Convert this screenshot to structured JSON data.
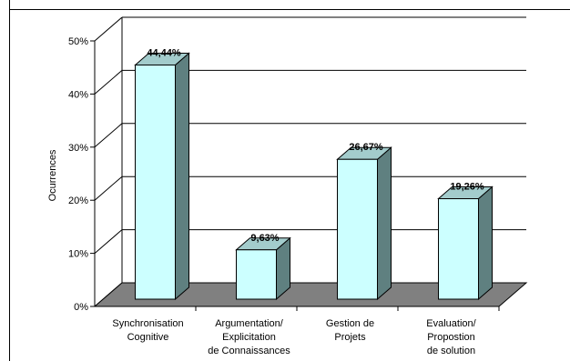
{
  "chart_data": {
    "type": "bar",
    "title": "",
    "xlabel": "",
    "ylabel": "Ocurrences",
    "ylim": [
      0,
      50
    ],
    "y_ticks": [
      "0%",
      "10%",
      "20%",
      "30%",
      "40%",
      "50%"
    ],
    "grid": true,
    "categories": [
      [
        "Synchronisation",
        "Cognitive"
      ],
      [
        "Argumentation/",
        "Explicitation",
        "de Connaissances"
      ],
      [
        "Gestion de",
        "Projets"
      ],
      [
        "Evaluation/",
        "Propostion",
        "de solution"
      ]
    ],
    "values": [
      44.44,
      9.63,
      26.67,
      19.26
    ],
    "data_labels": [
      "44,44%",
      "9,63%",
      "26,67%",
      "19,26%"
    ],
    "colors": {
      "bar_front": "#ccffff",
      "bar_side": "#5f8080",
      "bar_top": "#a3cccc",
      "floor": "#808080",
      "axis": "#000000",
      "grid": "#000000"
    }
  }
}
